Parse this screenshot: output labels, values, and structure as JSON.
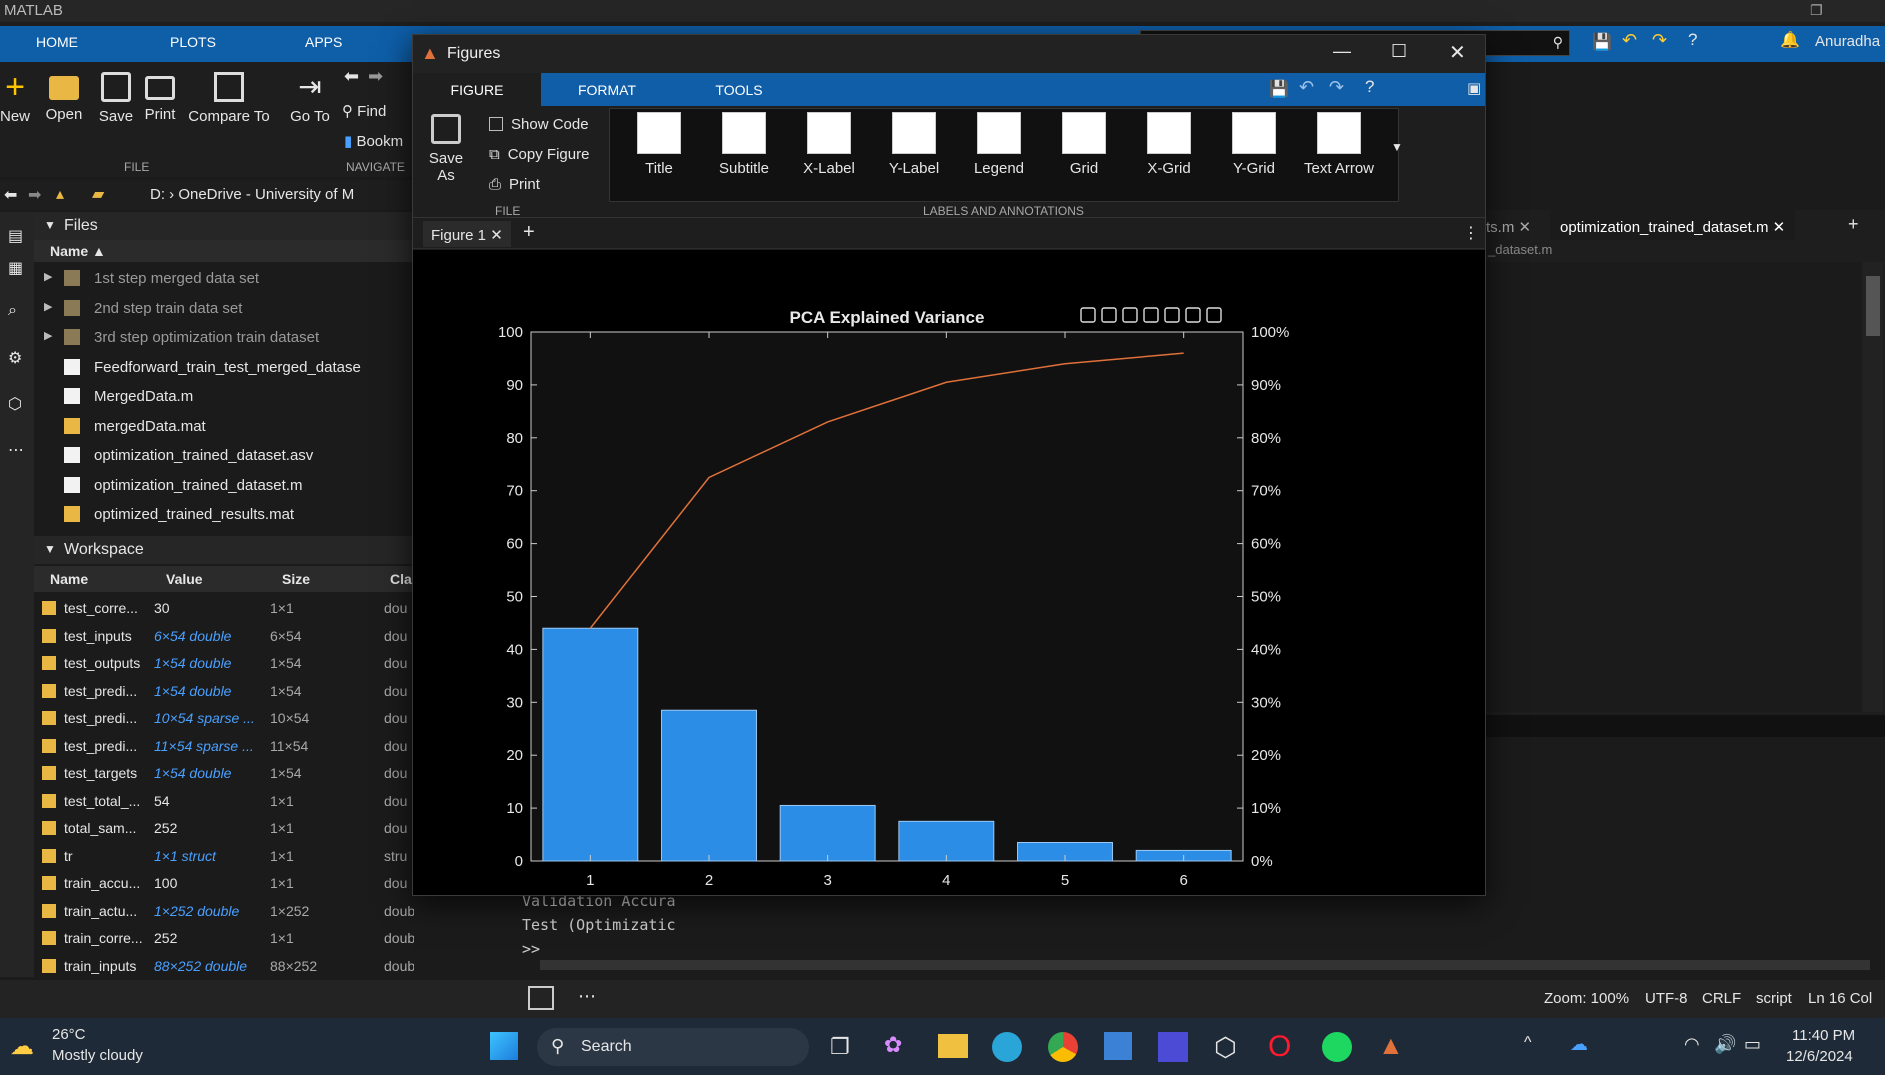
{
  "app": {
    "title": "MATLAB",
    "user": "Anuradha"
  },
  "main_tabs": [
    "HOME",
    "PLOTS",
    "APPS"
  ],
  "ribbon": {
    "buttons": [
      "New",
      "Open",
      "Save",
      "Print",
      "Compare To",
      "Go To"
    ],
    "find": "Find",
    "bookmarks": "Bookm",
    "group_file": "FILE",
    "group_navigate": "NAVIGATE"
  },
  "address": {
    "path": "D: › OneDrive - University of M"
  },
  "files_panel": {
    "title": "Files",
    "col_name": "Name ▲",
    "items": [
      {
        "name": "1st step merged data set",
        "kind": "folder"
      },
      {
        "name": "2nd step train data set",
        "kind": "folder"
      },
      {
        "name": "3rd step optimization train dataset",
        "kind": "folder"
      },
      {
        "name": "Feedforward_train_test_merged_datase",
        "kind": "mfile"
      },
      {
        "name": "MergedData.m",
        "kind": "mfile"
      },
      {
        "name": "mergedData.mat",
        "kind": "mat"
      },
      {
        "name": "optimization_trained_dataset.asv",
        "kind": "file"
      },
      {
        "name": "optimization_trained_dataset.m",
        "kind": "mfile"
      },
      {
        "name": "optimized_trained_results.mat",
        "kind": "mat"
      }
    ]
  },
  "workspace": {
    "title": "Workspace",
    "columns": [
      "Name",
      "Value",
      "Size",
      "Cla"
    ],
    "rows": [
      {
        "name": "test_corre...",
        "value": "30",
        "size": "1×1",
        "cls": "dou",
        "link": false
      },
      {
        "name": "test_inputs",
        "value": "6×54 double",
        "size": "6×54",
        "cls": "dou",
        "link": true
      },
      {
        "name": "test_outputs",
        "value": "1×54 double",
        "size": "1×54",
        "cls": "dou",
        "link": true
      },
      {
        "name": "test_predi...",
        "value": "1×54 double",
        "size": "1×54",
        "cls": "dou",
        "link": true
      },
      {
        "name": "test_predi...",
        "value": "10×54 sparse ...",
        "size": "10×54",
        "cls": "dou",
        "link": true
      },
      {
        "name": "test_predi...",
        "value": "11×54 sparse ...",
        "size": "11×54",
        "cls": "dou",
        "link": true
      },
      {
        "name": "test_targets",
        "value": "1×54 double",
        "size": "1×54",
        "cls": "dou",
        "link": true
      },
      {
        "name": "test_total_...",
        "value": "54",
        "size": "1×1",
        "cls": "dou",
        "link": false
      },
      {
        "name": "total_sam...",
        "value": "252",
        "size": "1×1",
        "cls": "dou",
        "link": false
      },
      {
        "name": "tr",
        "value": "1×1 struct",
        "size": "1×1",
        "cls": "stru",
        "link": true
      },
      {
        "name": "train_accu...",
        "value": "100",
        "size": "1×1",
        "cls": "dou",
        "link": false
      },
      {
        "name": "train_actu...",
        "value": "1×252 double",
        "size": "1×252",
        "cls": "double",
        "link": true
      },
      {
        "name": "train_corre...",
        "value": "252",
        "size": "1×1",
        "cls": "double",
        "link": false
      },
      {
        "name": "train_inputs",
        "value": "88×252 double",
        "size": "88×252",
        "cls": "double",
        "link": true
      }
    ]
  },
  "editor": {
    "tabs": [
      "ts.m",
      "optimization_trained_dataset.m"
    ],
    "breadcrumb": "_dataset.m"
  },
  "command_window": {
    "lines": [
      "Validation Accura",
      "Test (Optimizatic",
      ">>"
    ]
  },
  "status": {
    "zoom": "Zoom: 100%",
    "encoding": "UTF-8",
    "eol": "CRLF",
    "type": "script",
    "pos": "Ln 16 Col"
  },
  "taskbar": {
    "temp": "26°C",
    "weather": "Mostly cloudy",
    "search": "Search",
    "time": "11:40 PM",
    "date": "12/6/2024"
  },
  "figure_window": {
    "title": "Figures",
    "tabs": [
      "FIGURE",
      "FORMAT",
      "TOOLS"
    ],
    "file_group": {
      "save_as": "Save As",
      "show_code": "Show Code",
      "copy_figure": "Copy Figure",
      "print": "Print",
      "label": "FILE"
    },
    "gallery": [
      "Title",
      "Subtitle",
      "X-Label",
      "Y-Label",
      "Legend",
      "Grid",
      "X-Grid",
      "Y-Grid",
      "Text Arrow"
    ],
    "gallery_label": "LABELS AND ANNOTATIONS",
    "doc_tab": "Figure 1"
  },
  "chart_data": {
    "type": "bar",
    "title": "PCA Explained Variance",
    "categories": [
      "1",
      "2",
      "3",
      "4",
      "5",
      "6"
    ],
    "series": [
      {
        "type": "bar",
        "values": [
          44,
          28.5,
          10.5,
          7.5,
          3.5,
          2
        ]
      },
      {
        "type": "line",
        "axis": "right",
        "values": [
          44,
          72.5,
          83,
          90.5,
          94,
          96
        ]
      }
    ],
    "ylim": [
      0,
      100
    ],
    "yticks": [
      "0",
      "10",
      "20",
      "30",
      "40",
      "50",
      "60",
      "70",
      "80",
      "90",
      "100"
    ],
    "y2ticks": [
      "0%",
      "10%",
      "20%",
      "30%",
      "40%",
      "50%",
      "60%",
      "70%",
      "80%",
      "90%",
      "100%"
    ],
    "colors": {
      "bar": "#2b8de6",
      "line": "#e0713a",
      "background": "#111111"
    },
    "grid": false
  }
}
